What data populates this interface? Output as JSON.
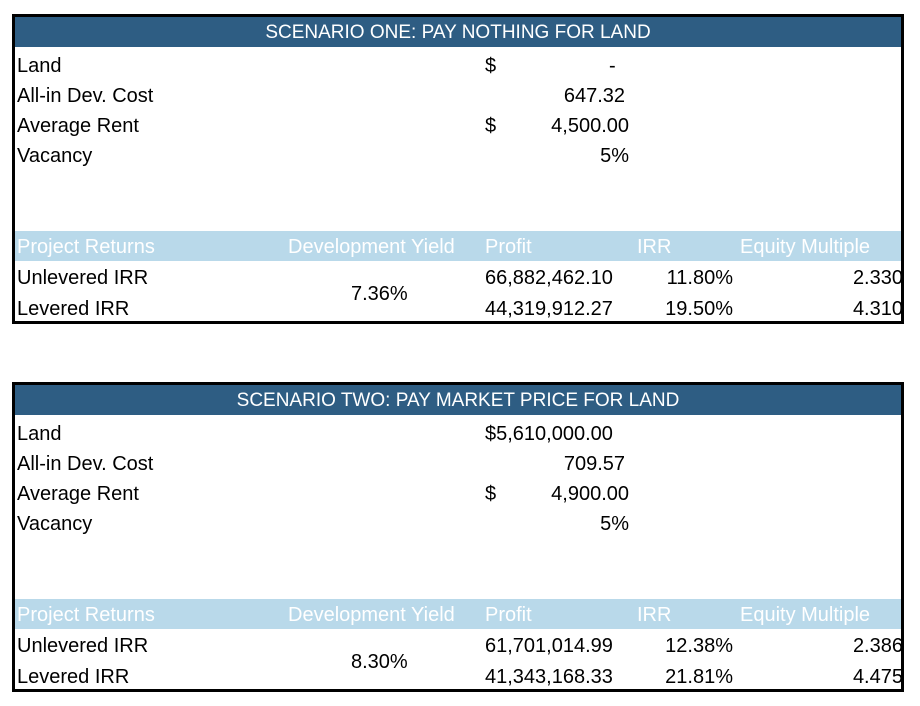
{
  "scenarios": [
    {
      "title": "SCENARIO ONE: PAY NOTHING FOR LAND",
      "inputs": {
        "land_label": "Land",
        "land_currency": "$",
        "land_value": "-",
        "dev_cost_label": "All-in Dev. Cost",
        "dev_cost_value": "647.32",
        "rent_label": "Average Rent",
        "rent_currency": "$",
        "rent_value": "4,500.00",
        "vacancy_label": "Vacancy",
        "vacancy_value": "5%"
      },
      "returns_header": {
        "project_returns": "Project Returns",
        "development_yield": "Development Yield",
        "profit": "Profit",
        "irr": "IRR",
        "equity_multiple": "Equity Multiple"
      },
      "development_yield": "7.36%",
      "rows": [
        {
          "label": "Unlevered IRR",
          "profit": "66,882,462.10",
          "irr": "11.80%",
          "multiple": "2.330"
        },
        {
          "label": "Levered IRR",
          "profit": "44,319,912.27",
          "irr": "19.50%",
          "multiple": "4.310"
        }
      ]
    },
    {
      "title": "SCENARIO TWO: PAY MARKET PRICE FOR LAND",
      "inputs": {
        "land_label": "Land",
        "land_currency": "",
        "land_value": "$5,610,000.00",
        "dev_cost_label": "All-in Dev. Cost",
        "dev_cost_value": "709.57",
        "rent_label": "Average Rent",
        "rent_currency": "$",
        "rent_value": "4,900.00",
        "vacancy_label": "Vacancy",
        "vacancy_value": "5%"
      },
      "returns_header": {
        "project_returns": "Project Returns",
        "development_yield": "Development Yield",
        "profit": "Profit",
        "irr": "IRR",
        "equity_multiple": "Equity Multiple"
      },
      "development_yield": "8.30%",
      "rows": [
        {
          "label": "Unlevered IRR",
          "profit": "61,701,014.99",
          "irr": "12.38%",
          "multiple": "2.386"
        },
        {
          "label": "Levered IRR",
          "profit": "41,343,168.33",
          "irr": "21.81%",
          "multiple": "4.475"
        }
      ]
    }
  ]
}
